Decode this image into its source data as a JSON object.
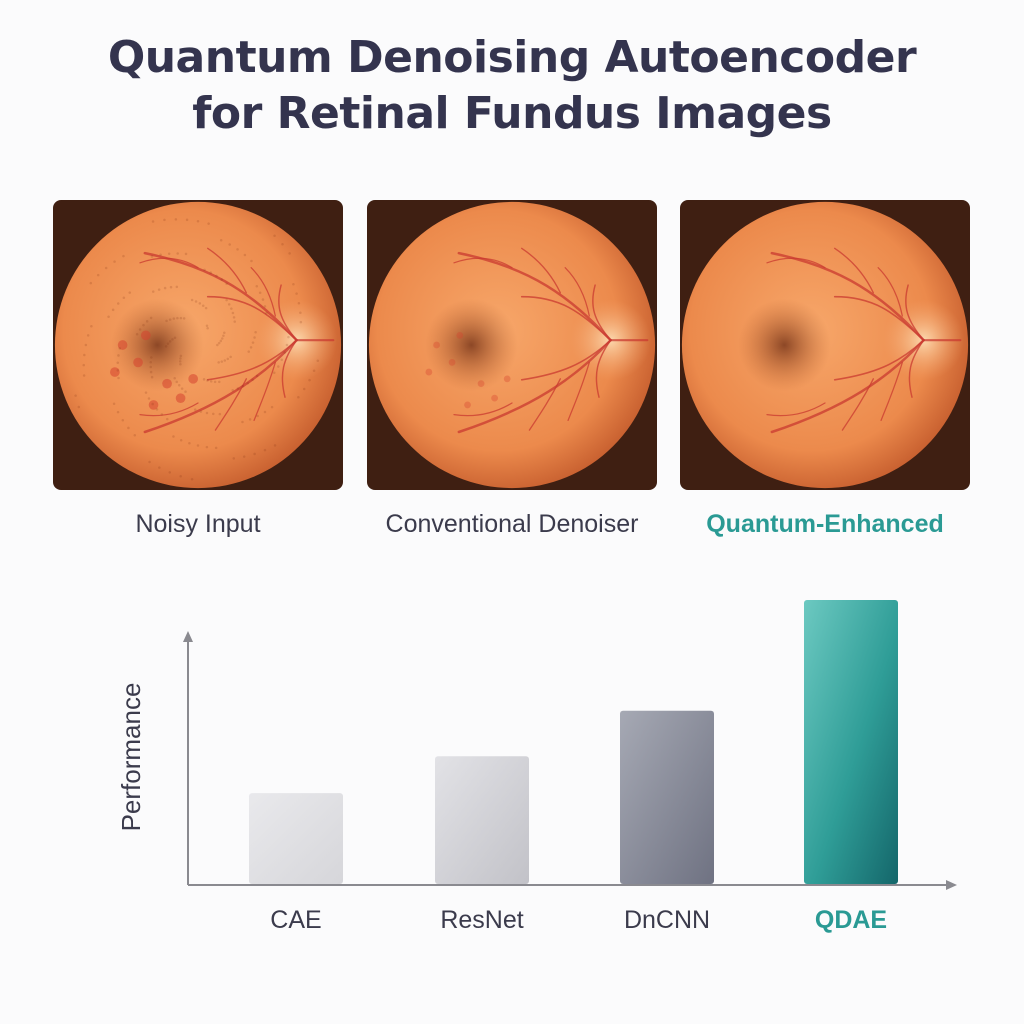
{
  "title": {
    "line1": "Quantum Denoising Autoencoder",
    "line2": "for Retinal Fundus Images"
  },
  "panels": [
    {
      "caption": "Noisy Input",
      "variant": "noisy"
    },
    {
      "caption": "Conventional Denoiser",
      "variant": "conventional"
    },
    {
      "caption": "Quantum-Enhanced",
      "variant": "quantum",
      "accent": true
    }
  ],
  "colors": {
    "title": "#34344e",
    "accent": "#2a9a94",
    "text": "#3b3b4c",
    "axis": "#8a8a90"
  },
  "chart_data": {
    "type": "bar",
    "title": "",
    "xlabel": "",
    "ylabel": "Performance",
    "categories": [
      "CAE",
      "ResNet",
      "DnCNN",
      "QDAE"
    ],
    "values": [
      32,
      45,
      61,
      100
    ],
    "ylim": [
      0,
      110
    ],
    "grid": false,
    "highlight": "QDAE"
  }
}
